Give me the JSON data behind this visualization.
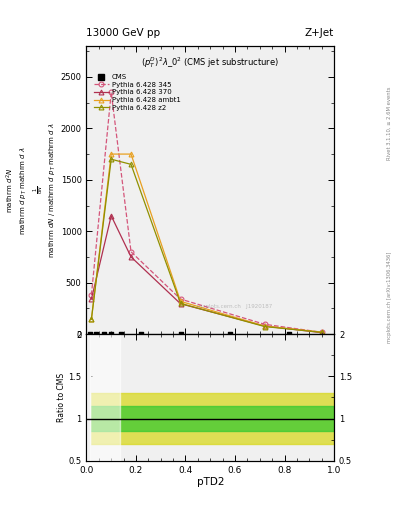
{
  "title_left": "13000 GeV pp",
  "title_right": "Z+Jet",
  "subtitle": "$(p_T^D)^2\\lambda\\_0^2$ (CMS jet substructure)",
  "xlabel": "pTD2",
  "ylabel_main_parts": [
    "mathrm d²N",
    "mathrm d pₜ mathrm d lambda",
    "1",
    "mathrm dN / mathrm d pₜ mathrm d lambda"
  ],
  "ylabel_ratio": "Ratio to CMS",
  "right_label": "Rivet 3.1.10, ≥ 2.6M events",
  "right_label2": "mcplots.cern.ch [arXiv:1306.3436]",
  "watermark": "mcplots.cern.ch   J1920187",
  "series": [
    {
      "label": "Pythia 6.428 345",
      "color": "#d4557a",
      "linestyle": "--",
      "marker": "o",
      "markersize": 3.5,
      "fillstyle": "none",
      "x": [
        0.02,
        0.1,
        0.18,
        0.38,
        0.72,
        0.95
      ],
      "y": [
        380,
        2350,
        800,
        340,
        95,
        18
      ]
    },
    {
      "label": "Pythia 6.428 370",
      "color": "#b03050",
      "linestyle": "-",
      "marker": "^",
      "markersize": 3.5,
      "fillstyle": "none",
      "x": [
        0.02,
        0.1,
        0.18,
        0.38,
        0.72,
        0.95
      ],
      "y": [
        340,
        1150,
        750,
        295,
        78,
        14
      ]
    },
    {
      "label": "Pythia 6.428 ambt1",
      "color": "#e8a020",
      "linestyle": "-",
      "marker": "^",
      "markersize": 3.5,
      "fillstyle": "none",
      "x": [
        0.02,
        0.1,
        0.18,
        0.38,
        0.72,
        0.95
      ],
      "y": [
        145,
        1750,
        1750,
        318,
        78,
        19
      ]
    },
    {
      "label": "Pythia 6.428 z2",
      "color": "#909000",
      "linestyle": "-",
      "marker": "^",
      "markersize": 3.5,
      "fillstyle": "none",
      "x": [
        0.02,
        0.1,
        0.18,
        0.38,
        0.72,
        0.95
      ],
      "y": [
        145,
        1700,
        1650,
        298,
        73,
        17
      ]
    }
  ],
  "cms_x": [
    0.015,
    0.04,
    0.07,
    0.1,
    0.14,
    0.22,
    0.38,
    0.58,
    0.82
  ],
  "cms_y": [
    0,
    0,
    0,
    0,
    0,
    0,
    0,
    0,
    0
  ],
  "ylim_main": [
    0,
    2800
  ],
  "yticks_main": [
    0,
    500,
    1000,
    1500,
    2000,
    2500
  ],
  "xlim": [
    0.0,
    1.0
  ],
  "ylim_ratio": [
    0.5,
    2.0
  ],
  "yticks_ratio": [
    0.5,
    1.0,
    1.5,
    2.0
  ],
  "ratio_green_lo": 0.85,
  "ratio_green_hi": 1.15,
  "ratio_yellow_lo": 0.7,
  "ratio_yellow_hi": 1.3,
  "bg_color": "#f0f0f0"
}
